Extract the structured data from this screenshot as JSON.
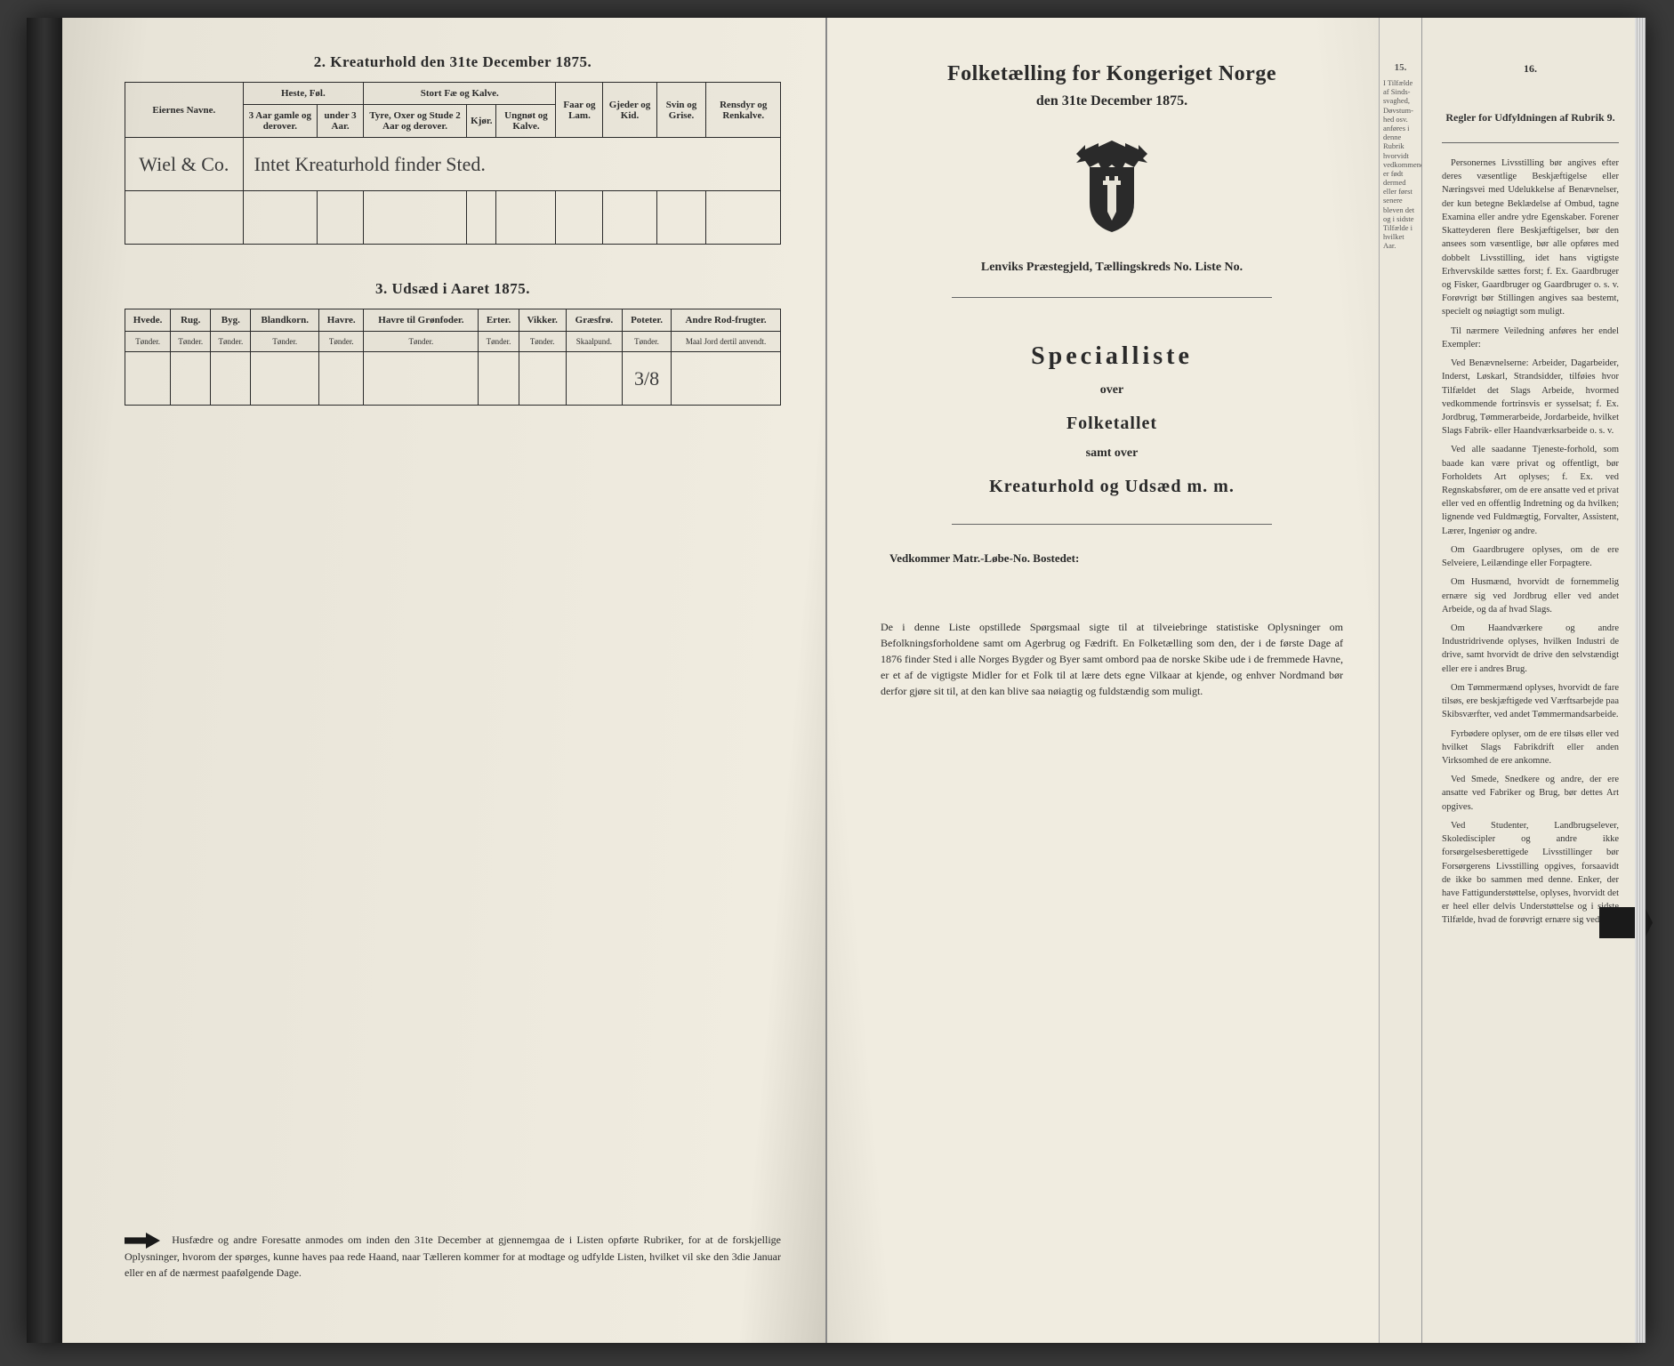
{
  "left": {
    "section2": {
      "title": "2.  Kreaturhold den 31te December 1875.",
      "headers": {
        "owner": "Eiernes Navne.",
        "horses": "Heste, Føl.",
        "horses_sub": [
          "3 Aar gamle og derover.",
          "under 3 Aar."
        ],
        "cattle": "Stort Fæ og Kalve.",
        "cattle_sub": [
          "Tyre, Oxer og Stude 2 Aar og derover.",
          "Kjør.",
          "Ungnøt og Kalve."
        ],
        "sheep": "Faar og Lam.",
        "goats": "Gjeder og Kid.",
        "pigs": "Svin og Grise.",
        "reindeer": "Rensdyr og Renkalve."
      },
      "row_owner": "Wiel & Co.",
      "row_note": "Intet Kreaturhold finder Sted."
    },
    "section3": {
      "title": "3.  Udsæd i Aaret 1875.",
      "headers": [
        "Hvede.",
        "Rug.",
        "Byg.",
        "Blandkorn.",
        "Havre.",
        "Havre til Grønfoder.",
        "Erter.",
        "Vikker.",
        "Græsfrø.",
        "Poteter.",
        "Andre Rod-frugter."
      ],
      "units": [
        "Tønder.",
        "Tønder.",
        "Tønder.",
        "Tønder.",
        "Tønder.",
        "Tønder.",
        "Tønder.",
        "Tønder.",
        "Skaalpund.",
        "Tønder.",
        "Maal Jord dertil anvendt."
      ],
      "values": [
        "",
        "",
        "",
        "",
        "",
        "",
        "",
        "",
        "",
        "3/8",
        ""
      ]
    },
    "footnote": "Husfædre og andre Foresatte anmodes om inden den 31te December at gjennemgaa de i Listen opførte Rubriker, for at de forskjellige Oplysninger, hvorom der spørges, kunne haves paa rede Haand, naar Tælleren kommer for at modtage og udfylde Listen, hvilket vil ske den 3die Januar eller en af de nærmest paafølgende Dage."
  },
  "right": {
    "title": "Folketælling for Kongeriget Norge",
    "subtitle": "den 31te December 1875.",
    "district_line": "Lenviks Præstegjeld,  Tællingskreds No.        Liste No.",
    "special": "Specialliste",
    "over": "over",
    "folketallet": "Folketallet",
    "samt": "samt over",
    "kreatur": "Kreaturhold og Udsæd m. m.",
    "vedkommer": "Vedkommer Matr.-Løbe-No.              Bostedet:",
    "paragraph": "De i denne Liste opstillede Spørgsmaal sigte til at tilveiebringe statistiske Oplysninger om Befolkningsforholdene samt om Agerbrug og Fædrift.  En Folketælling som den, der i de første Dage af 1876 finder Sted i alle Norges Bygder og Byer samt ombord paa de norske Skibe ude i de fremmede Havne, er et af de vigtigste Midler for et Folk til at lære dets egne Vilkaar at kjende, og enhver Nordmand bør derfor gjøre sit til, at den kan blive saa nøiagtig og fuldstændig som muligt."
  },
  "far": {
    "col15": "15.",
    "col16": "16.",
    "header15": "I Tilfælde af Sinds-svaghed, Døvstum-hed osv. anføres i denne Rubrik hvorvidt vedkommende er født dermed eller først senere bleven det og i sidste Tilfælde i hvilket Aar.",
    "header16": "Regler for Udfyldningen af Rubrik 9.",
    "body": "Personernes Livsstilling bør angives efter deres væsentlige Beskjæftigelse eller Næringsvei med Udelukkelse af Benævnelser, der kun betegne Beklædelse af Ombud, tagne Examina eller andre ydre Egenskaber. Forener Skatteyderen flere Beskjæftigelser, bør den ansees som væsentlige, bør alle opføres med dobbelt Livsstilling, idet hans vigtigste Erhvervskilde sættes forst; f. Ex. Gaardbruger og Fisker, Gaardbruger og Gaardbruger o. s. v. Forøvrigt bør Stillingen angives saa bestemt, specielt og nøiagtigt som muligt.\n\nTil nærmere Veiledning anføres her endel Exempler:\n\nVed Benævnelserne: Arbeider, Dagarbeider, Inderst, Løskarl, Strandsidder, tilføies hvor Tilfældet det Slags Arbeide, hvormed vedkommende fortrinsvis er sysselsat; f. Ex. Jordbrug, Tømmerarbeide, Jordarbeide, hvilket Slags Fabrik- eller Haandværksarbeide o. s. v.\n\nVed alle saadanne Tjeneste-forhold, som baade kan være privat og offentligt, bør Forholdets Art oplyses; f. Ex. ved Regnskabsfører, om de ere ansatte ved et privat eller ved en offentlig Indretning og da hvilken; lignende ved Fuldmægtig, Forvalter, Assistent, Lærer, Ingeniør og andre.\n\nOm Gaardbrugere oplyses, om de ere Selveiere, Leilændinge eller Forpagtere.\n\nOm Husmænd, hvorvidt de fornemmelig ernære sig ved Jordbrug eller ved andet Arbeide, og da af hvad Slags.\n\nOm Haandværkere og andre Industridrivende oplyses, hvilken Industri de drive, samt hvorvidt de drive den selvstændigt eller ere i andres Brug.\n\nOm Tømmermænd oplyses, hvorvidt de fare tilsøs, ere beskjæftigede ved Værftsarbejde paa Skibsværfter, ved andet Tømmermandsarbeide.\n\nFyrbødere oplyser, om de ere tilsøs eller ved hvilket Slags Fabrikdrift eller anden Virksomhed de ere ankomne.\n\nVed Smede, Snedkere og andre, der ere ansatte ved Fabriker og Brug, bør dettes Art opgives.\n\nVed Studenter, Landbrugselever, Skolediscipler og andre ikke forsørgelsesberettigede Livsstillinger bør Forsørgerens Livsstilling opgives, forsaavidt de ikke bo sammen med denne. Enker, der have Fattigunderstøttelse, oplyses, hvorvidt det er heel eller delvis Understøttelse og i sidste Tilfælde, hvad de forøvrigt ernære sig ved."
  }
}
